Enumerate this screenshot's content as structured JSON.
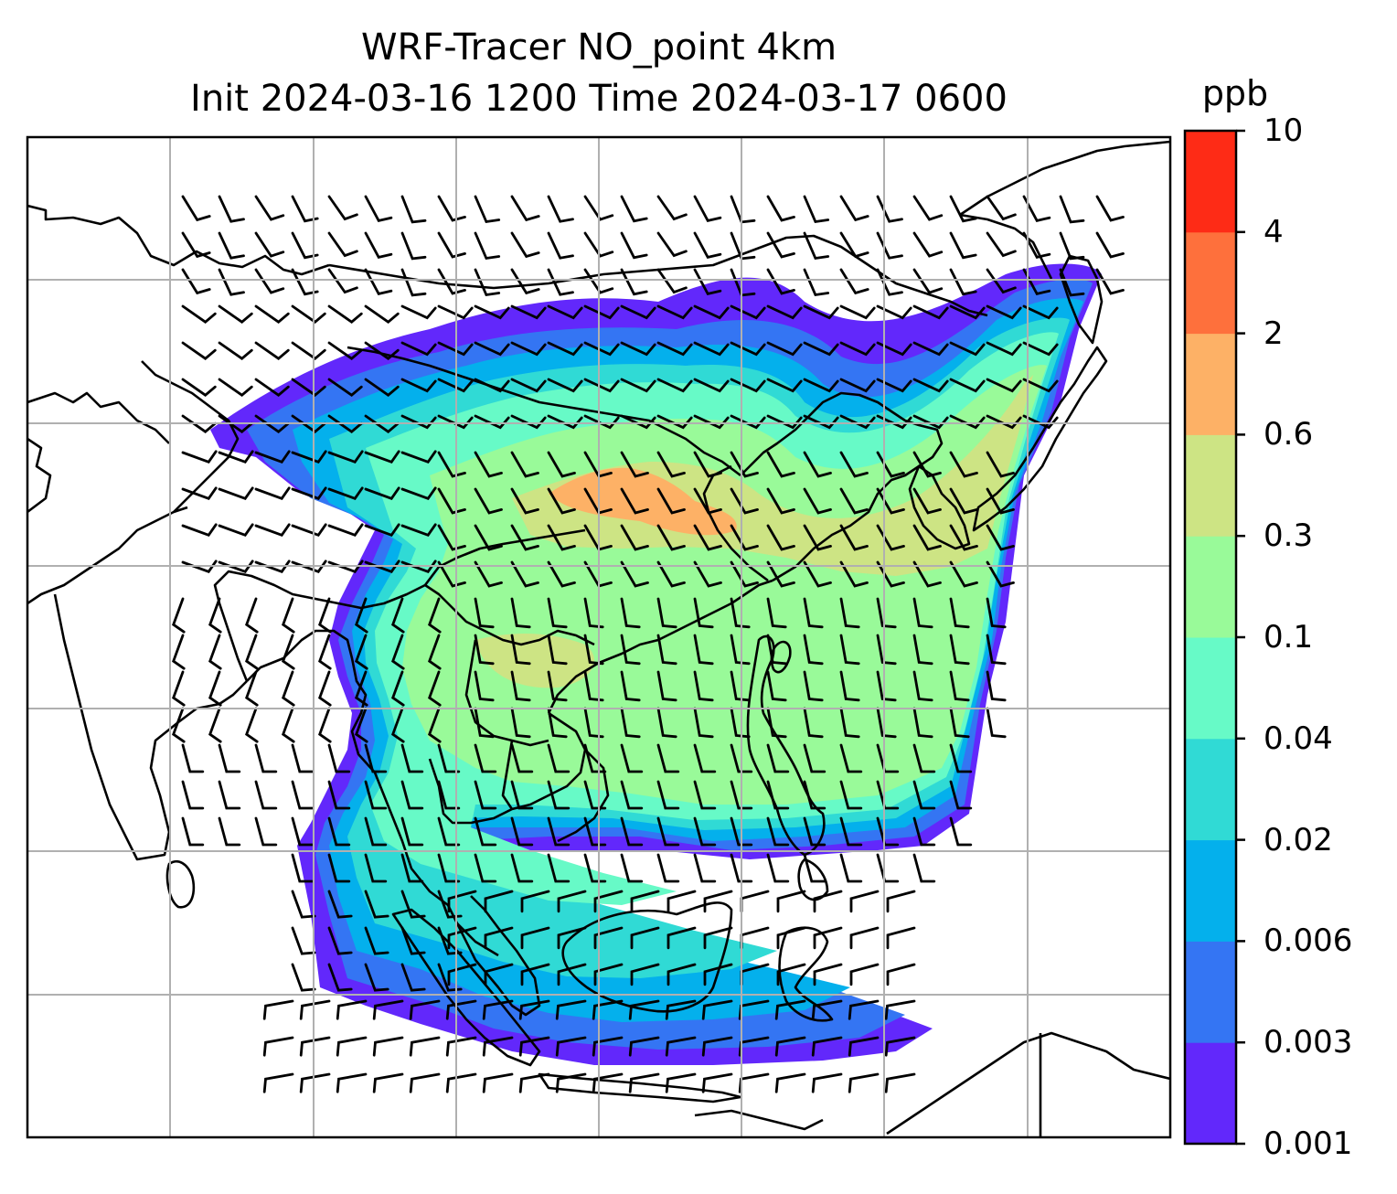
{
  "title": {
    "line1": "WRF-Tracer NO_point 4km",
    "line2": "Init 2024-03-16 1200 Time 2024-03-17 0600"
  },
  "colorbar": {
    "unit": "ppb",
    "levels": [
      "0.001",
      "0.003",
      "0.006",
      "0.02",
      "0.04",
      "0.1",
      "0.3",
      "0.6",
      "2",
      "4",
      "10"
    ],
    "colors": [
      "#6228fb",
      "#3475f3",
      "#04b0ec",
      "#30dad5",
      "#67fac7",
      "#99fa99",
      "#cde484",
      "#fdb166",
      "#fe703c",
      "#fe2b16"
    ]
  },
  "map": {
    "field": "NO_point tracer concentration",
    "overlays": [
      "coastlines",
      "country borders",
      "wind barbs",
      "lat-lon gridlines"
    ]
  }
}
